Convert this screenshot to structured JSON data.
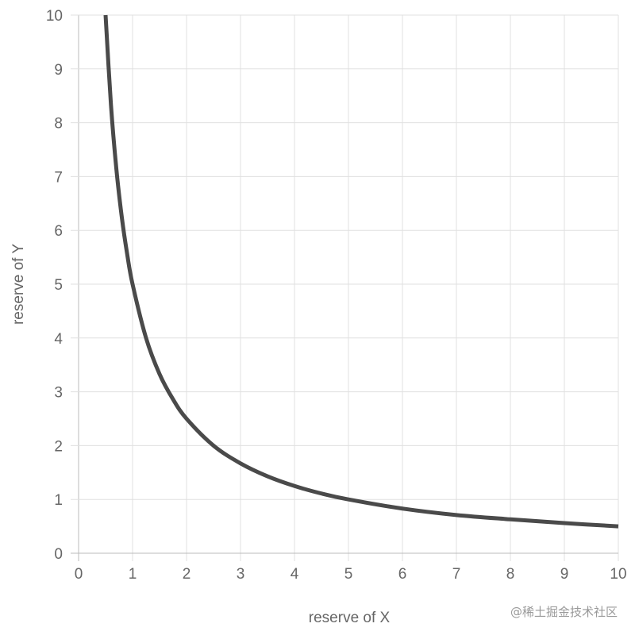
{
  "chart_data": {
    "type": "line",
    "xlabel": "reserve of X",
    "ylabel": "reserve of Y",
    "xlim": [
      0,
      10
    ],
    "ylim": [
      0,
      10
    ],
    "x_ticks": [
      "0",
      "1",
      "2",
      "3",
      "4",
      "5",
      "6",
      "7",
      "8",
      "9",
      "10"
    ],
    "y_ticks": [
      "0",
      "1",
      "2",
      "3",
      "4",
      "5",
      "6",
      "7",
      "8",
      "9",
      "10"
    ],
    "grid": true,
    "series": [
      {
        "x": [
          0.5,
          0.6,
          0.7,
          0.8,
          0.9,
          1,
          1.25,
          1.5,
          1.75,
          2,
          2.5,
          3,
          3.5,
          4,
          4.5,
          5,
          6,
          7,
          8,
          9,
          10
        ],
        "y": [
          10,
          8.33,
          7.14,
          6.25,
          5.56,
          5,
          4,
          3.33,
          2.86,
          2.5,
          2,
          1.67,
          1.43,
          1.25,
          1.11,
          1,
          0.83,
          0.71,
          0.63,
          0.56,
          0.5
        ],
        "color": "#4a4a4a"
      }
    ]
  },
  "watermark": "@稀土掘金技术社区"
}
